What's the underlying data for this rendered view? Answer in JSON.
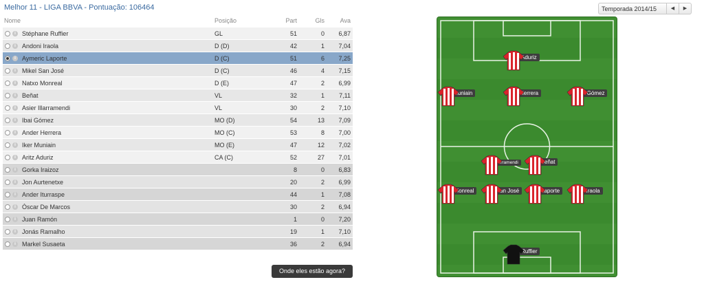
{
  "header": {
    "title": "Melhor 11 - LIGA BBVA - Pontuação: 106464",
    "season": "Temporada 2014/15",
    "prev_icon": "◀",
    "next_icon": "▶"
  },
  "table": {
    "columns": [
      "Nome",
      "Posição",
      "Part",
      "Gls",
      "Ava"
    ],
    "rows": [
      {
        "name": "Stéphane Ruffier",
        "pos": "GL",
        "part": "51",
        "gls": "0",
        "ava": "6,87"
      },
      {
        "name": "Andoni Iraola",
        "pos": "D (D)",
        "part": "42",
        "gls": "1",
        "ava": "7,04"
      },
      {
        "name": "Aymeric Laporte",
        "pos": "D (C)",
        "part": "51",
        "gls": "6",
        "ava": "7,25"
      },
      {
        "name": "Mikel San José",
        "pos": "D (C)",
        "part": "46",
        "gls": "4",
        "ava": "7,15"
      },
      {
        "name": "Natxo Monreal",
        "pos": "D (E)",
        "part": "47",
        "gls": "2",
        "ava": "6,99"
      },
      {
        "name": "Beñat",
        "pos": "VL",
        "part": "32",
        "gls": "1",
        "ava": "7,11"
      },
      {
        "name": "Asier Illarramendi",
        "pos": "VL",
        "part": "30",
        "gls": "2",
        "ava": "7,10"
      },
      {
        "name": "Ibai Gómez",
        "pos": "MO (D)",
        "part": "54",
        "gls": "13",
        "ava": "7,09"
      },
      {
        "name": "Ander Herrera",
        "pos": "MO (C)",
        "part": "53",
        "gls": "8",
        "ava": "7,00"
      },
      {
        "name": "Iker Muniain",
        "pos": "MO (E)",
        "part": "47",
        "gls": "12",
        "ava": "7,02"
      },
      {
        "name": "Aritz Aduriz",
        "pos": "CA (C)",
        "part": "52",
        "gls": "27",
        "ava": "7,01"
      },
      {
        "name": "Gorka Iraizoz",
        "pos": "",
        "part": "8",
        "gls": "0",
        "ava": "6,83"
      },
      {
        "name": "Jon Aurtenetxe",
        "pos": "",
        "part": "20",
        "gls": "2",
        "ava": "6,99"
      },
      {
        "name": "Ander Iturraspe",
        "pos": "",
        "part": "44",
        "gls": "1",
        "ava": "7,08"
      },
      {
        "name": "Óscar De Marcos",
        "pos": "",
        "part": "30",
        "gls": "2",
        "ava": "6,94"
      },
      {
        "name": "Juan Ramón",
        "pos": "",
        "part": "1",
        "gls": "0",
        "ava": "7,20"
      },
      {
        "name": "Jonás Ramalho",
        "pos": "",
        "part": "19",
        "gls": "1",
        "ava": "7,10"
      },
      {
        "name": "Markel Susaeta",
        "pos": "",
        "part": "36",
        "gls": "2",
        "ava": "6,94"
      }
    ],
    "selected_index": 2,
    "starters_count": 11
  },
  "button": {
    "label": "Onde eles estão agora?"
  },
  "pitch": {
    "players": [
      {
        "label": "A Aduriz",
        "kit": "red"
      },
      {
        "label": "I Muniain",
        "kit": "red"
      },
      {
        "label": "A Herrera",
        "kit": "red"
      },
      {
        "label": "Ibai Gómez",
        "kit": "red"
      },
      {
        "label": "A Illarramendi",
        "kit": "red"
      },
      {
        "label": "Beñat",
        "kit": "red"
      },
      {
        "label": "N Monreal",
        "kit": "red"
      },
      {
        "label": "M San José",
        "kit": "red"
      },
      {
        "label": "A Laporte",
        "kit": "red"
      },
      {
        "label": "A Iraola",
        "kit": "red"
      },
      {
        "label": "S Ruffier",
        "kit": "black"
      }
    ]
  },
  "colors": {
    "title": "#3a6aa0",
    "selected_row": "#88a7c9",
    "pitch": "#3b8a2e",
    "kit_red": "#d9232b",
    "kit_black": "#111111"
  }
}
